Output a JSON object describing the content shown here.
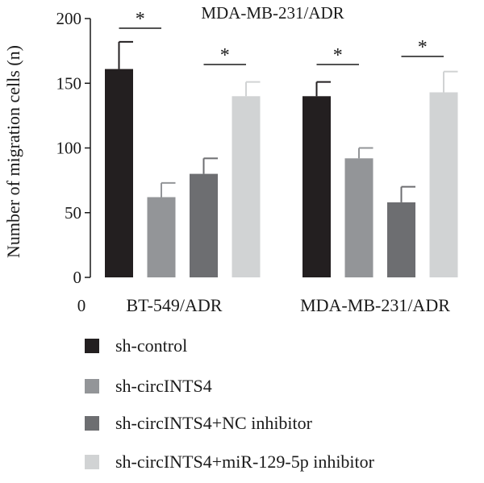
{
  "chart_data": {
    "type": "bar",
    "title": "MDA-MB-231/ADR",
    "xlabel": "",
    "ylabel": "Number of migration cells (n)",
    "ylim": [
      0,
      200
    ],
    "yticks": [
      0,
      50,
      100,
      150,
      200
    ],
    "x_origin_label": "0",
    "categories": [
      "BT-549/ADR",
      "MDA-MB-231/ADR"
    ],
    "series": [
      {
        "name": "sh-control",
        "color": "#231f20",
        "values": [
          161,
          140
        ],
        "errors": [
          21,
          11
        ]
      },
      {
        "name": "sh-circINTS4",
        "color": "#939598",
        "values": [
          62,
          92
        ],
        "errors": [
          11,
          8
        ]
      },
      {
        "name": "sh-circINTS4+NC inhibitor",
        "color": "#6d6e71",
        "values": [
          80,
          58
        ],
        "errors": [
          12,
          12
        ]
      },
      {
        "name": "sh-circINTS4+miR-129-5p inhibitor",
        "color": "#d1d3d4",
        "values": [
          140,
          143
        ],
        "errors": [
          11,
          16
        ]
      }
    ],
    "significance": [
      {
        "group": 0,
        "from": 0,
        "to": 1,
        "label": "*"
      },
      {
        "group": 0,
        "from": 2,
        "to": 3,
        "label": "*"
      },
      {
        "group": 1,
        "from": 0,
        "to": 1,
        "label": "*"
      },
      {
        "group": 1,
        "from": 2,
        "to": 3,
        "label": "*"
      }
    ],
    "legend_position": "bottom",
    "grid": false
  }
}
